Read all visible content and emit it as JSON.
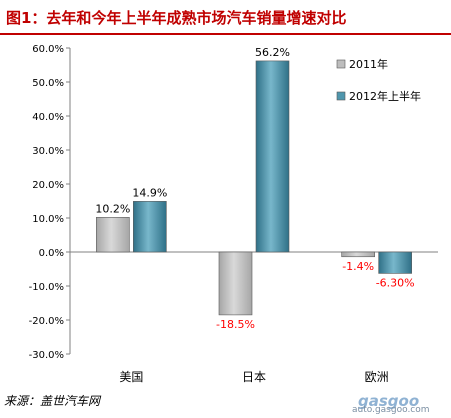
{
  "title": "图1：去年和今年上半年成熟市场汽车销量增速对比",
  "source": "来源：盖世汽车网",
  "watermark": {
    "logo": "gasgoo",
    "url": "auto.gasgoo.com"
  },
  "colors": {
    "title": "#c00000",
    "series_2011": "#bdbdbd",
    "series_2012": "#4f96ad",
    "negative_label": "#ff0000",
    "axis_label": "#000000"
  },
  "chart_data": {
    "type": "bar",
    "categories": [
      "美国",
      "日本",
      "欧洲"
    ],
    "series": [
      {
        "name": "2011年",
        "values": [
          10.2,
          -18.5,
          -1.4
        ],
        "labels": [
          "10.2%",
          "-18.5%",
          "-1.4%"
        ]
      },
      {
        "name": "2012年上半年",
        "values": [
          14.9,
          56.2,
          -6.3
        ],
        "labels": [
          "14.9%",
          "56.2%",
          "-6.30%"
        ]
      }
    ],
    "ylim": [
      -30,
      60
    ],
    "yticks": [
      60,
      50,
      40,
      30,
      20,
      10,
      0,
      -10,
      -20,
      -30
    ],
    "ytick_labels": [
      "60.0%",
      "50.0%",
      "40.0%",
      "30.0%",
      "20.0%",
      "10.0%",
      "0.0%",
      "-10.0%",
      "-20.0%",
      "-30.0%"
    ],
    "grid": false,
    "legend_position": "right"
  }
}
